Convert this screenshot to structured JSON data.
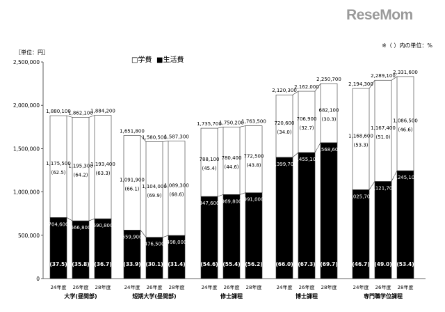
{
  "logo_text": "ReseMom",
  "chart_data": {
    "type": "bar",
    "stacked": true,
    "unit_label": "［単位：円］",
    "note": "※（ ）内の単位：%",
    "legend": {
      "tuition": "□学費",
      "living": "■生活費",
      "placement": "top-left"
    },
    "y_ticks": [
      "0",
      "500,000",
      "1,000,000",
      "1,500,000",
      "2,000,000",
      "2,500,000"
    ],
    "ylim": [
      0,
      2500000
    ],
    "years": [
      "24年度",
      "26年度",
      "28年度"
    ],
    "colors": {
      "living": "#000000",
      "tuition": "#ffffff",
      "outline": "#333333"
    },
    "groups": [
      {
        "name": "大学(昼間部)",
        "bars": [
          {
            "year": "24年度",
            "living": 704600,
            "tuition": 1175500,
            "total": 1880100,
            "living_label": "704,600",
            "tuition_label": "1,175,500",
            "total_label": "1,880,100",
            "living_pct": "(37.5)",
            "tuition_pct": "(62.5)"
          },
          {
            "year": "26年度",
            "living": 666800,
            "tuition": 1195300,
            "total": 1862100,
            "living_label": "666,800",
            "tuition_label": "1,195,300",
            "total_label": "1,862,100",
            "living_pct": "(35.8)",
            "tuition_pct": "(64.2)"
          },
          {
            "year": "28年度",
            "living": 690800,
            "tuition": 1193400,
            "total": 1884200,
            "living_label": "690,800",
            "tuition_label": "1,193,400",
            "total_label": "1,884,200",
            "living_pct": "(36.7)",
            "tuition_pct": "(63.3)"
          }
        ]
      },
      {
        "name": "短期大学(昼間部)",
        "bars": [
          {
            "year": "24年度",
            "living": 559900,
            "tuition": 1091900,
            "total": 1651800,
            "living_label": "559,900",
            "tuition_label": "1,091,900",
            "total_label": "1,651,800",
            "living_pct": "(33.9)",
            "tuition_pct": "(66.1)"
          },
          {
            "year": "26年度",
            "living": 476500,
            "tuition": 1104000,
            "total": 1580500,
            "living_label": "476,500",
            "tuition_label": "1,104,000",
            "total_label": "1,580,500",
            "living_pct": "(30.1)",
            "tuition_pct": "(69.9)"
          },
          {
            "year": "28年度",
            "living": 498000,
            "tuition": 1089300,
            "total": 1587300,
            "living_label": "498,000",
            "tuition_label": "1,089,300",
            "total_label": "1,587,300",
            "living_pct": "(31.4)",
            "tuition_pct": "(68.6)"
          }
        ]
      },
      {
        "name": "修士課程",
        "bars": [
          {
            "year": "24年度",
            "living": 947600,
            "tuition": 788100,
            "total": 1735700,
            "living_label": "947,600",
            "tuition_label": "788,100",
            "total_label": "1,735,700",
            "living_pct": "(54.6)",
            "tuition_pct": "(45.4)"
          },
          {
            "year": "26年度",
            "living": 969800,
            "tuition": 780400,
            "total": 1750200,
            "living_label": "969,800",
            "tuition_label": "780,400",
            "total_label": "1,750,200",
            "living_pct": "(55.4)",
            "tuition_pct": "(44.6)"
          },
          {
            "year": "28年度",
            "living": 991000,
            "tuition": 772500,
            "total": 1763500,
            "living_label": "991,000",
            "tuition_label": "772,500",
            "total_label": "1,763,500",
            "living_pct": "(56.2)",
            "tuition_pct": "(43.8)"
          }
        ]
      },
      {
        "name": "博士課程",
        "bars": [
          {
            "year": "24年度",
            "living": 1399700,
            "tuition": 720600,
            "total": 2120300,
            "living_label": "1,399,700",
            "tuition_label": "720,600",
            "total_label": "2,120,300",
            "living_pct": "(66.0)",
            "tuition_pct": "(34.0)"
          },
          {
            "year": "26年度",
            "living": 1455100,
            "tuition": 706900,
            "total": 2162000,
            "living_label": "1,455,100",
            "tuition_label": "706,900",
            "total_label": "2,162,000",
            "living_pct": "(67.3)",
            "tuition_pct": "(32.7)"
          },
          {
            "year": "28年度",
            "living": 1568600,
            "tuition": 682100,
            "total": 2250700,
            "living_label": "1,568,600",
            "tuition_label": "682,100",
            "total_label": "2,250,700",
            "living_pct": "(69.7)",
            "tuition_pct": "(30.3)"
          }
        ]
      },
      {
        "name": "専門職学位課程",
        "bars": [
          {
            "year": "24年度",
            "living": 1025700,
            "tuition": 1168600,
            "total": 2194300,
            "living_label": "1,025,700",
            "tuition_label": "1,168,600",
            "total_label": "2,194,300",
            "living_pct": "(46.7)",
            "tuition_pct": "(53.3)"
          },
          {
            "year": "26年度",
            "living": 1121700,
            "tuition": 1167400,
            "total": 2289100,
            "living_label": "1,121,700",
            "tuition_label": "1,167,400",
            "total_label": "2,289,100",
            "living_pct": "(49.0)",
            "tuition_pct": "(51.0)"
          },
          {
            "year": "28年度",
            "living": 1245100,
            "tuition": 1086500,
            "total": 2331600,
            "living_label": "1,245,100",
            "tuition_label": "1,086,500",
            "total_label": "2,331,600",
            "living_pct": "(53.4)",
            "tuition_pct": "(46.6)"
          }
        ]
      }
    ]
  }
}
